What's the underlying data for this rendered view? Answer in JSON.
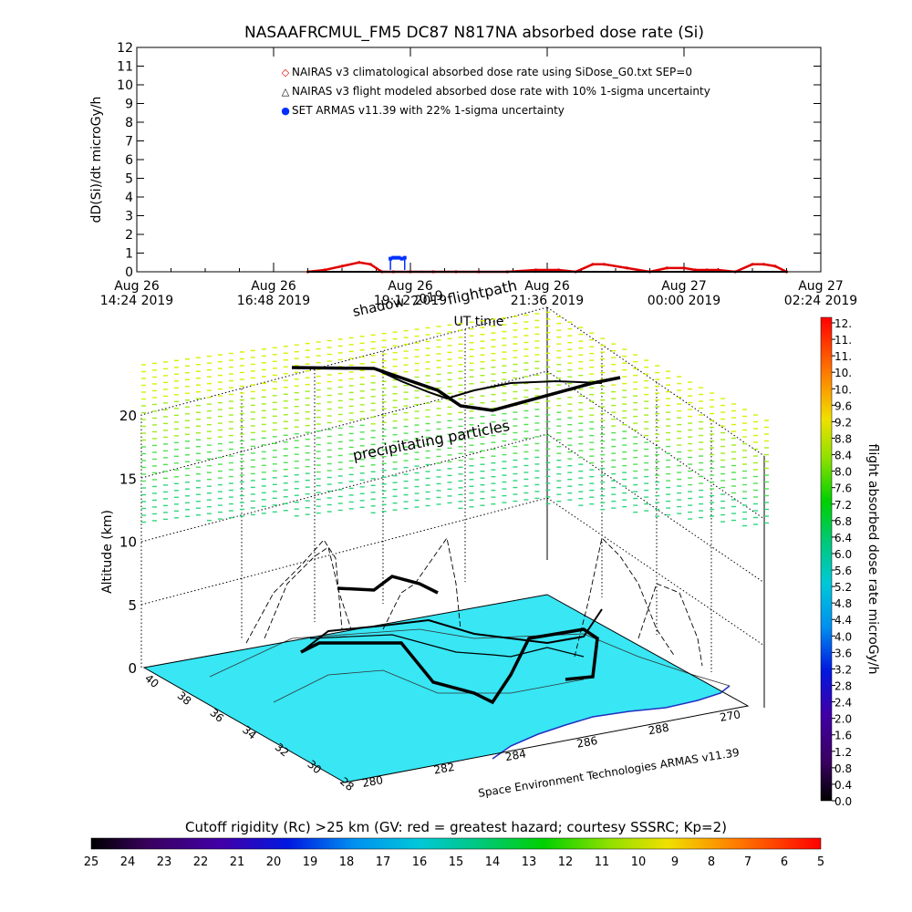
{
  "chart_data": [
    {
      "type": "line",
      "title": "NASAAFRCMUL_FM5 DC87 N817NA absorbed dose rate (Si)",
      "xlabel": "UT time",
      "ylabel": "dD(Si)/dt microGy/h",
      "ylim": [
        0,
        12
      ],
      "yticks": [
        "0",
        "1",
        "2",
        "3",
        "4",
        "5",
        "6",
        "7",
        "8",
        "9",
        "10",
        "11",
        "12"
      ],
      "xtick_labels": [
        {
          "top": "Aug 26",
          "bottom": "14:24 2019"
        },
        {
          "top": "Aug 26",
          "bottom": "16:48 2019"
        },
        {
          "top": "Aug 26",
          "bottom": "19:12 2019"
        },
        {
          "top": "Aug 26",
          "bottom": "21:36 2019"
        },
        {
          "top": "Aug 27",
          "bottom": "00:00 2019"
        },
        {
          "top": "Aug 27",
          "bottom": "02:24 2019"
        }
      ],
      "xlim_hours": [
        0,
        12
      ],
      "legend_position": "top-left",
      "legend": [
        {
          "marker": "◇",
          "color": "#e00000",
          "label": "NAIRAS v3 climatological absorbed dose rate using SiDose_G0.txt SEP=0"
        },
        {
          "marker": "△",
          "color": "#000000",
          "label": "NAIRAS v3 flight modeled absorbed dose rate with 10% 1-sigma uncertainty"
        },
        {
          "marker": "●",
          "color": "#0030ff",
          "label": "SET ARMAS v11.39 with 22% 1-sigma uncertainty"
        }
      ],
      "series": [
        {
          "name": "NAIRAS v3 climatological absorbed dose rate using SiDose_G0.txt SEP=0",
          "color": "#e00000",
          "x_hours": [
            3.0,
            3.3,
            3.6,
            3.9,
            4.1,
            4.3,
            4.5,
            4.8,
            5.2,
            5.6,
            6.0,
            6.5,
            7.0,
            7.4,
            7.7,
            8.0,
            8.2,
            8.6,
            9.0,
            9.3,
            9.6,
            9.8,
            10.0,
            10.2,
            10.5,
            10.8,
            11.0,
            11.2,
            11.4
          ],
          "y": [
            0.0,
            0.1,
            0.3,
            0.5,
            0.4,
            0.0,
            0.0,
            0.0,
            0.0,
            0.0,
            0.0,
            0.0,
            0.1,
            0.1,
            0.0,
            0.4,
            0.4,
            0.2,
            0.0,
            0.2,
            0.2,
            0.1,
            0.1,
            0.1,
            0.0,
            0.4,
            0.4,
            0.3,
            0.0
          ]
        },
        {
          "name": "NAIRAS v3 flight modeled absorbed dose rate with 10% 1-sigma uncertainty",
          "color": "#000000",
          "x_hours": [
            3.0,
            5.0,
            7.0,
            9.0,
            11.4
          ],
          "y": [
            0.0,
            0.0,
            0.0,
            0.0,
            0.0
          ]
        },
        {
          "name": "SET ARMAS v11.39 with 22% 1-sigma uncertainty",
          "color": "#0030ff",
          "x_hours": [
            4.45,
            4.5,
            4.55,
            4.6,
            4.65,
            4.7
          ],
          "y": [
            0.7,
            0.75,
            0.75,
            0.75,
            0.7,
            0.75
          ]
        }
      ]
    },
    {
      "type": "scatter",
      "title": "",
      "zlabel": "Altitude (km)",
      "zticks": [
        "0",
        "5",
        "10",
        "15",
        "20"
      ],
      "zlim": [
        0,
        20
      ],
      "lat_ticks": [
        "40",
        "38",
        "36",
        "34",
        "32",
        "30",
        "28"
      ],
      "lon_ticks": [
        "280",
        "282",
        "284",
        "286",
        "288",
        "270"
      ],
      "annotations": [
        "shadow",
        "2019",
        "flightpath",
        "precipitating particles",
        "Space Environment Technologies ARMAS v11.39"
      ],
      "colorbar_right": {
        "label": "flight absorbed dose rate microGy/h",
        "ticks": [
          "12.",
          "11.",
          "11.",
          "10.",
          "10.",
          "9.6",
          "9.2",
          "8.8",
          "8.4",
          "8.0",
          "7.6",
          "7.2",
          "6.8",
          "6.4",
          "6.0",
          "5.6",
          "5.2",
          "4.8",
          "4.4",
          "4.0",
          "3.6",
          "3.2",
          "2.8",
          "2.4",
          "2.0",
          "1.6",
          "1.2",
          "0.8",
          "0.4",
          "0.0"
        ]
      },
      "colorbar_bottom": {
        "label": "Cutoff rigidity (Rc) >25 km (GV: red = greatest hazard; courtesy SSSRC; Kp=2)",
        "ticks": [
          "25",
          "24",
          "23",
          "22",
          "21",
          "20",
          "19",
          "18",
          "17",
          "16",
          "15",
          "14",
          "13",
          "12",
          "11",
          "10",
          "9",
          "8",
          "7",
          "6",
          "5"
        ]
      },
      "surface_color": "#38e6f4",
      "land_color": "#ffffff",
      "particle_colors": [
        "#d6f000",
        "#a0ec1a",
        "#50e050",
        "#2fd67c"
      ]
    }
  ]
}
